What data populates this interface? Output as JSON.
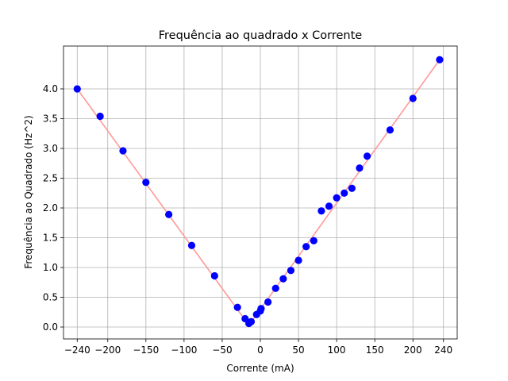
{
  "chart_data": {
    "type": "scatter",
    "title": "Frequência ao quadrado x Corrente",
    "xlabel": "Corrente (mA)",
    "ylabel": "Frequência ao Quadrado (Hz^2)",
    "xlim": [
      -258,
      258
    ],
    "ylim": [
      -0.2,
      4.72
    ],
    "xticks": [
      -240,
      -200,
      -150,
      -100,
      -50,
      0,
      50,
      100,
      150,
      200,
      240
    ],
    "xtick_labels": [
      "−240",
      "−200",
      "−150",
      "−100",
      "−50",
      "0",
      "50",
      "100",
      "150",
      "200",
      "240"
    ],
    "yticks": [
      0.0,
      0.5,
      1.0,
      1.5,
      2.0,
      2.5,
      3.0,
      3.5,
      4.0
    ],
    "ytick_labels": [
      "0.0",
      "0.5",
      "1.0",
      "1.5",
      "2.0",
      "2.5",
      "3.0",
      "3.5",
      "4.0"
    ],
    "grid": true,
    "series": [
      {
        "kind": "scatter",
        "color": "#0000ff",
        "x": [
          -240,
          -210,
          -180,
          -150,
          -120,
          -90,
          -60,
          -30,
          -20,
          -15,
          -12,
          -5,
          0,
          1,
          10,
          20,
          30,
          40,
          50,
          60,
          70,
          80,
          90,
          100,
          110,
          120,
          130,
          140,
          170,
          200,
          235
        ],
        "y": [
          4.0,
          3.54,
          2.96,
          2.43,
          1.89,
          1.37,
          0.86,
          0.33,
          0.14,
          0.06,
          0.09,
          0.21,
          0.27,
          0.31,
          0.42,
          0.65,
          0.81,
          0.95,
          1.12,
          1.35,
          1.45,
          1.95,
          2.03,
          2.17,
          2.25,
          2.33,
          2.67,
          2.87,
          3.31,
          3.84,
          4.49
        ]
      },
      {
        "kind": "fit-line",
        "color": "#ff9999",
        "x": [
          -240,
          -15,
          235
        ],
        "y": [
          4.0,
          0.03,
          4.49
        ]
      }
    ]
  }
}
